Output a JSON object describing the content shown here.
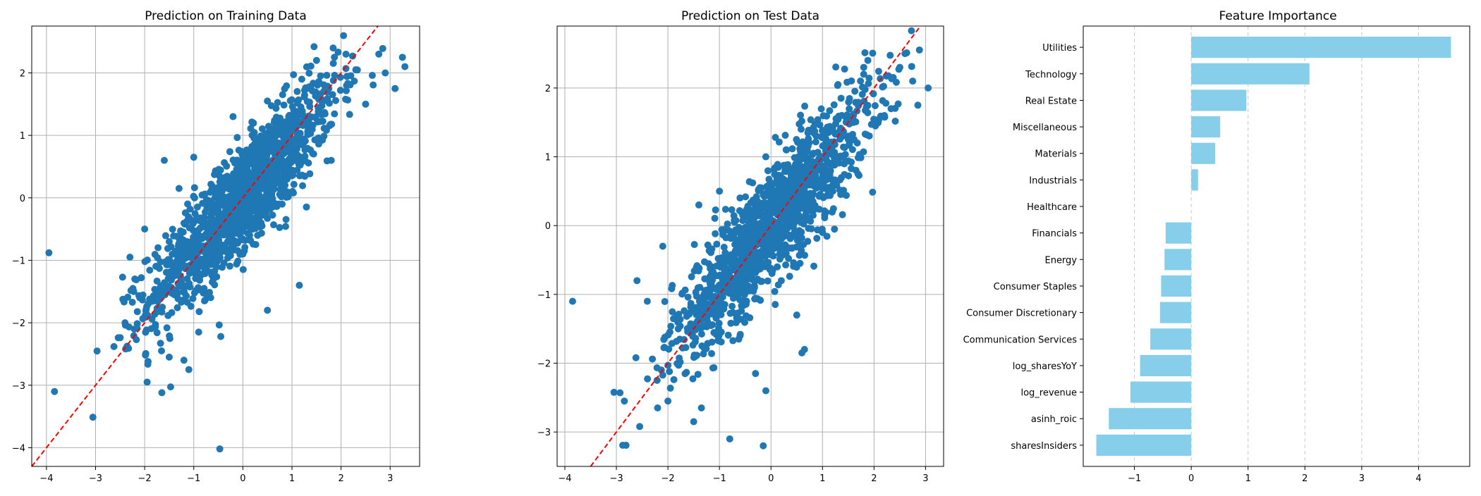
{
  "chart_data": [
    {
      "type": "scatter",
      "title": "Prediction on Training Data",
      "xlabel": "",
      "ylabel": "",
      "xlim": [
        -4.3,
        3.6
      ],
      "ylim": [
        -4.3,
        2.75
      ],
      "xticks": [
        -4,
        -3,
        -2,
        -1,
        0,
        1,
        2,
        3
      ],
      "yticks": [
        -4,
        -3,
        -2,
        -1,
        0,
        1,
        2
      ],
      "tick_labels_x": [
        "−4",
        "−3",
        "−2",
        "−1",
        "0",
        "1",
        "2",
        "3"
      ],
      "tick_labels_y": [
        "−4",
        "−3",
        "−2",
        "−1",
        "0",
        "1",
        "2"
      ],
      "grid": true,
      "point_color": "#1f77b4",
      "reference_line": {
        "style": "dashed",
        "color": "#ff0000",
        "slope": 1,
        "intercept": 0
      },
      "series": [
        {
          "points": [
            [
              -3.95,
              -0.88
            ],
            [
              -0.47,
              -4.02
            ],
            [
              -1.95,
              -2.95
            ],
            [
              -1.65,
              -3.12
            ],
            [
              -1.93,
              -2.62
            ],
            [
              -1.1,
              -2.75
            ],
            [
              -1.2,
              -2.6
            ],
            [
              -0.45,
              -2.22
            ],
            [
              -0.9,
              -2.15
            ],
            [
              -1.5,
              -2.55
            ],
            [
              1.15,
              -1.4
            ],
            [
              0.5,
              -1.8
            ],
            [
              -2.4,
              -2.0
            ],
            [
              -2.2,
              -1.3
            ],
            [
              -2.45,
              -1.27
            ],
            [
              -2.1,
              -1.6
            ],
            [
              -2.0,
              -0.5
            ],
            [
              -1.6,
              0.6
            ],
            [
              -1.3,
              0.15
            ],
            [
              -0.8,
              0.05
            ],
            [
              -0.2,
              1.3
            ],
            [
              0.5,
              1.55
            ],
            [
              1.5,
              2.2
            ],
            [
              1.45,
              2.42
            ],
            [
              2.1,
              2.3
            ],
            [
              3.25,
              2.25
            ],
            [
              3.3,
              2.1
            ],
            [
              3.1,
              1.75
            ],
            [
              2.9,
              2.0
            ],
            [
              2.5,
              1.5
            ],
            [
              1.8,
              0.6
            ],
            [
              0.8,
              -0.1
            ],
            [
              0.3,
              -0.6
            ],
            [
              -0.3,
              -0.4
            ],
            [
              -1.5,
              -0.7
            ],
            [
              1.75,
              1.75
            ],
            [
              -1.0,
              0.65
            ],
            [
              0.0,
              -0.9
            ],
            [
              0.9,
              0.3
            ],
            [
              -0.6,
              -1.3
            ],
            [
              1.2,
              1.9
            ],
            [
              -2.3,
              -0.95
            ],
            [
              2.3,
              2.05
            ],
            [
              -0.05,
              0.4
            ],
            [
              0.6,
              0.9
            ]
          ]
        }
      ]
    },
    {
      "type": "scatter",
      "title": "Prediction on Test Data",
      "xlabel": "",
      "ylabel": "",
      "xlim": [
        -4.15,
        3.35
      ],
      "ylim": [
        -3.5,
        2.9
      ],
      "xticks": [
        -4,
        -3,
        -2,
        -1,
        0,
        1,
        2,
        3
      ],
      "yticks": [
        -3,
        -2,
        -1,
        0,
        1,
        2
      ],
      "tick_labels_x": [
        "−4",
        "−3",
        "−2",
        "−1",
        "0",
        "1",
        "2",
        "3"
      ],
      "tick_labels_y": [
        "−3",
        "−2",
        "−1",
        "0",
        "1",
        "2"
      ],
      "grid": true,
      "point_color": "#1f77b4",
      "reference_line": {
        "style": "dashed",
        "color": "#ff0000",
        "slope": 1,
        "intercept": 0
      },
      "series": [
        {
          "points": [
            [
              -3.85,
              -1.1
            ],
            [
              -0.8,
              -3.1
            ],
            [
              -0.15,
              -3.2
            ],
            [
              -1.5,
              -2.85
            ],
            [
              -1.35,
              -2.65
            ],
            [
              0.65,
              -1.8
            ],
            [
              0.6,
              -1.85
            ],
            [
              -0.1,
              -2.4
            ],
            [
              -2.0,
              -2.55
            ],
            [
              -2.2,
              -2.65
            ],
            [
              -0.3,
              -2.15
            ],
            [
              1.8,
              2.2
            ],
            [
              2.6,
              2.5
            ],
            [
              1.3,
              2.05
            ],
            [
              1.8,
              2.3
            ],
            [
              2.5,
              2.3
            ],
            [
              3.05,
              2.0
            ],
            [
              2.85,
              1.75
            ],
            [
              2.75,
              2.1
            ],
            [
              1.6,
              1.5
            ],
            [
              -1.0,
              0.5
            ],
            [
              -0.1,
              1.0
            ],
            [
              -2.1,
              -0.3
            ],
            [
              -1.4,
              0.3
            ],
            [
              -2.6,
              -0.8
            ],
            [
              0.5,
              -1.3
            ],
            [
              1.0,
              -0.1
            ],
            [
              0.2,
              -0.8
            ],
            [
              -0.4,
              -0.5
            ],
            [
              0.7,
              1.2
            ],
            [
              1.2,
              0.5
            ],
            [
              -1.8,
              -1.5
            ],
            [
              -2.4,
              -1.1
            ],
            [
              0.3,
              1.1
            ],
            [
              -0.6,
              -1.6
            ],
            [
              1.5,
              1.3
            ],
            [
              2.2,
              1.6
            ],
            [
              -1.2,
              -1.0
            ],
            [
              0.0,
              0.0
            ],
            [
              0.9,
              0.8
            ]
          ]
        }
      ]
    },
    {
      "type": "bar",
      "orientation": "horizontal",
      "title": "Feature Importance",
      "xlabel": "",
      "ylabel": "",
      "xlim": [
        -1.9,
        4.9
      ],
      "xticks": [
        -1,
        0,
        1,
        2,
        3,
        4
      ],
      "tick_labels_x": [
        "−1",
        "0",
        "1",
        "2",
        "3",
        "4"
      ],
      "grid": "x-dashed",
      "bar_color": "#87ceeb",
      "categories": [
        "Utilities",
        "Technology",
        "Real Estate",
        "Miscellaneous",
        "Materials",
        "Industrials",
        "Healthcare",
        "Financials",
        "Energy",
        "Consumer Staples",
        "Consumer Discretionary",
        "Communication Services",
        "log_sharesYoY",
        "log_revenue",
        "asinh_roic",
        "sharesInsiders"
      ],
      "values": [
        4.57,
        2.08,
        0.97,
        0.51,
        0.42,
        0.12,
        0.0,
        -0.45,
        -0.47,
        -0.53,
        -0.55,
        -0.72,
        -0.9,
        -1.07,
        -1.45,
        -1.67
      ]
    }
  ]
}
